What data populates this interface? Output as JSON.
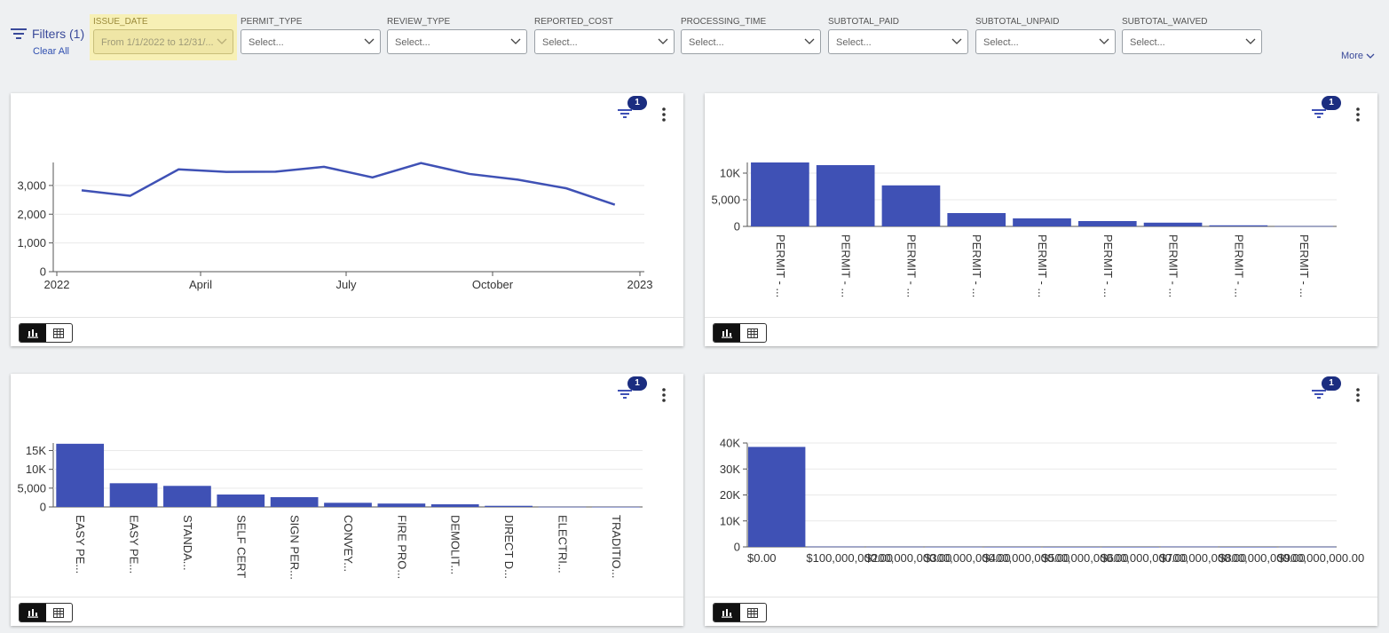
{
  "filters": {
    "title": "Filters (1)",
    "clear_all": "Clear All",
    "more": "More",
    "items": [
      {
        "label": "ISSUE_DATE",
        "value": "From 1/1/2022 to 12/31/...",
        "active": true
      },
      {
        "label": "PERMIT_TYPE",
        "value": "Select..."
      },
      {
        "label": "REVIEW_TYPE",
        "value": "Select..."
      },
      {
        "label": "REPORTED_COST",
        "value": "Select..."
      },
      {
        "label": "PROCESSING_TIME",
        "value": "Select..."
      },
      {
        "label": "SUBTOTAL_PAID",
        "value": "Select..."
      },
      {
        "label": "SUBTOTAL_UNPAID",
        "value": "Select..."
      },
      {
        "label": "SUBTOTAL_WAIVED",
        "value": "Select..."
      }
    ]
  },
  "card_badges": [
    "1",
    "1",
    "1",
    "1"
  ],
  "colors": {
    "accent": "#3f51b5",
    "badge": "#1b2d80",
    "highlight": "#f7f0b5"
  },
  "chart_data": [
    {
      "type": "line",
      "x": [
        "2022-01",
        "2022-02",
        "2022-03",
        "2022-04",
        "2022-05",
        "2022-06",
        "2022-07",
        "2022-08",
        "2022-09",
        "2022-10",
        "2022-11",
        "2022-12"
      ],
      "values": [
        2830,
        2640,
        3560,
        3470,
        3480,
        3650,
        3280,
        3780,
        3400,
        3200,
        2900,
        2330
      ],
      "xticks": [
        "2022",
        "April",
        "July",
        "October",
        "2023"
      ],
      "yticks": [
        "0",
        "1,000",
        "2,000",
        "3,000"
      ],
      "ylim": [
        0,
        3800
      ],
      "grid": true
    },
    {
      "type": "bar",
      "categories": [
        "PERMIT - ...",
        "PERMIT - ...",
        "PERMIT - ...",
        "PERMIT - ...",
        "PERMIT - ...",
        "PERMIT - ...",
        "PERMIT - ...",
        "PERMIT - ...",
        "PERMIT - ..."
      ],
      "values": [
        12000,
        11500,
        7700,
        2500,
        1500,
        1000,
        700,
        200,
        50
      ],
      "yticks": [
        "0",
        "5,000",
        "10K"
      ],
      "ylim": [
        0,
        12000
      ],
      "grid": true
    },
    {
      "type": "bar",
      "categories": [
        "EASY PE...",
        "EASY PE...",
        "STANDA...",
        "SELF CERT",
        "SIGN PER...",
        "CONVEY...",
        "FIRE PRO...",
        "DEMOLIT...",
        "DIRECT D...",
        "ELECTRI...",
        "TRADITIO..."
      ],
      "values": [
        16800,
        6300,
        5600,
        3300,
        2600,
        1100,
        900,
        700,
        300,
        50,
        30
      ],
      "yticks": [
        "0",
        "5,000",
        "10K",
        "15K"
      ],
      "ylim": [
        0,
        17000
      ],
      "grid": true
    },
    {
      "type": "bar",
      "categories": [
        "$0.00",
        "$100,000,000.00",
        "$200,000,000.00",
        "$300,000,000.00",
        "$400,000,000.00",
        "$500,000,000.00",
        "$600,000,000.00",
        "$700,000,000.00",
        "$800,000,000.00",
        "$900,000,000.00"
      ],
      "values": [
        38500,
        120,
        80,
        50,
        20,
        10,
        10,
        120,
        10,
        80
      ],
      "yticks": [
        "0",
        "10K",
        "20K",
        "30K",
        "40K"
      ],
      "ylim": [
        0,
        40000
      ],
      "grid": true
    }
  ]
}
